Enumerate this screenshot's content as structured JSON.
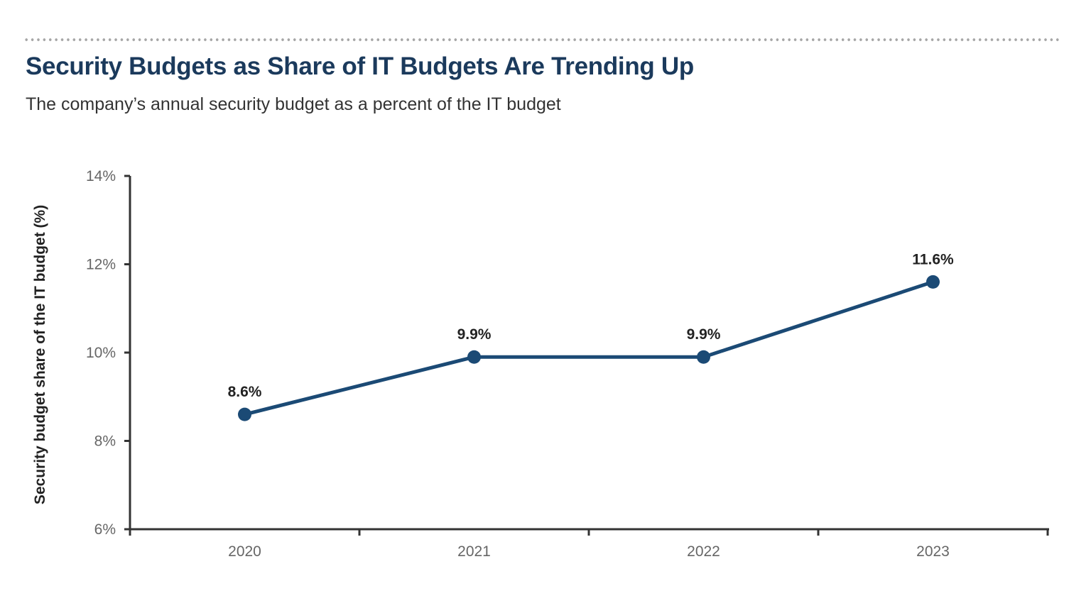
{
  "header": {
    "title": "Security Budgets as Share of IT Budgets Are Trending Up",
    "subtitle": "The company’s annual security budget as a percent of the IT budget"
  },
  "chart_data": {
    "type": "line",
    "title": "Security Budgets as Share of IT Budgets Are Trending Up",
    "subtitle": "The company’s annual security budget as a percent of the IT budget",
    "xlabel": "",
    "ylabel": "Security budget share of the IT budget (%)",
    "categories": [
      "2020",
      "2021",
      "2022",
      "2023"
    ],
    "values": [
      8.6,
      9.9,
      9.9,
      11.6
    ],
    "data_labels": [
      "8.6%",
      "9.9%",
      "9.9%",
      "11.6%"
    ],
    "ylim": [
      6,
      14
    ],
    "yticks": [
      6,
      8,
      10,
      12,
      14
    ],
    "ytick_labels": [
      "6%",
      "8%",
      "10%",
      "12%",
      "14%"
    ],
    "grid": false,
    "legend": "none",
    "colors": {
      "line": "#1b4a75",
      "title": "#1b3a5c",
      "axis": "#333333"
    }
  }
}
